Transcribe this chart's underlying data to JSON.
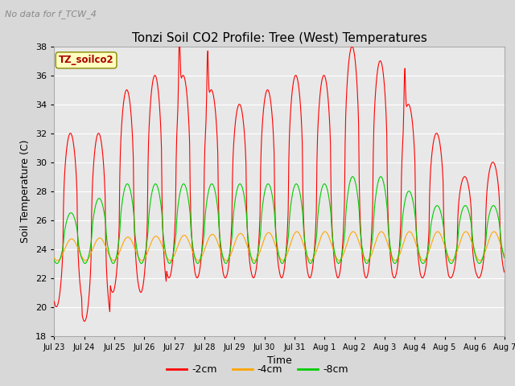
{
  "title": "Tonzi Soil CO2 Profile: Tree (West) Temperatures",
  "no_data_label": "No data for f_TCW_4",
  "xlabel": "Time",
  "ylabel": "Soil Temperature (C)",
  "ylim": [
    18,
    38
  ],
  "yticks": [
    18,
    20,
    22,
    24,
    26,
    28,
    30,
    32,
    34,
    36,
    38
  ],
  "xtick_labels": [
    "Jul 23",
    "Jul 24",
    "Jul 25",
    "Jul 26",
    "Jul 27",
    "Jul 28",
    "Jul 29",
    "Jul 30",
    "Jul 31",
    "Aug 1",
    "Aug 2",
    "Aug 3",
    "Aug 4",
    "Aug 5",
    "Aug 6",
    "Aug 7"
  ],
  "legend_label": "TZ_soilco2",
  "series_labels": [
    "-2cm",
    "-4cm",
    "-8cm"
  ],
  "series_colors": [
    "#ff0000",
    "#ffa500",
    "#00cc00"
  ],
  "background_color": "#d8d8d8",
  "plot_bg_color": "#e8e8e8",
  "grid_color": "#ffffff",
  "title_fontsize": 11,
  "label_fontsize": 9,
  "tick_fontsize": 8,
  "legend_box_facecolor": "#ffffc0",
  "legend_box_edgecolor": "#888800",
  "legend_text_color": "#aa0000",
  "no_data_color": "#888888"
}
